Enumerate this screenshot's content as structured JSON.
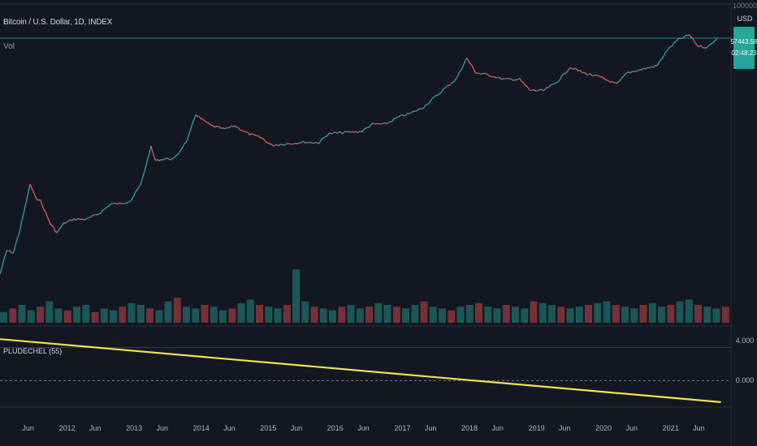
{
  "header": {
    "symbol_title": "Bitcoin / U.S. Dollar, 1D, INDEX",
    "volume_label": "Vol"
  },
  "price_axis": {
    "top_label": "100000.00",
    "currency": "USD",
    "last_price": "57443.58",
    "countdown": "02:48:23"
  },
  "indicator": {
    "label": "PLUDECHEL (55)",
    "axis_labels": [
      "4.000",
      "0.000"
    ]
  },
  "colors": {
    "background": "#131722",
    "up": "#26a69a",
    "down": "#ef5350",
    "indicator_line": "#f2e24d"
  },
  "chart_data": [
    {
      "type": "line",
      "title": "Bitcoin / U.S. Dollar, 1D, INDEX",
      "scale": "log",
      "x_tick_labels": [
        "Jun",
        "2012",
        "Jun",
        "2013",
        "Jun",
        "2014",
        "Jun",
        "2015",
        "Jun",
        "2016",
        "Jun",
        "2017",
        "Jun",
        "2018",
        "Jun",
        "2019",
        "Jun",
        "2020",
        "Jun",
        "2021",
        "Jun"
      ],
      "y_top_label": "100000.00",
      "last_value": 57443.58,
      "points": [
        [
          2011.0,
          0.3
        ],
        [
          2011.1,
          1.0
        ],
        [
          2011.2,
          0.9
        ],
        [
          2011.3,
          3.0
        ],
        [
          2011.45,
          30
        ],
        [
          2011.52,
          16
        ],
        [
          2011.6,
          13
        ],
        [
          2011.75,
          4
        ],
        [
          2011.85,
          2.5
        ],
        [
          2011.95,
          4
        ],
        [
          2012.1,
          5
        ],
        [
          2012.3,
          5
        ],
        [
          2012.5,
          7
        ],
        [
          2012.65,
          11
        ],
        [
          2012.8,
          11
        ],
        [
          2012.95,
          13
        ],
        [
          2013.1,
          30
        ],
        [
          2013.25,
          200
        ],
        [
          2013.32,
          100
        ],
        [
          2013.45,
          110
        ],
        [
          2013.6,
          110
        ],
        [
          2013.8,
          300
        ],
        [
          2013.92,
          1100
        ],
        [
          2014.0,
          850
        ],
        [
          2014.15,
          600
        ],
        [
          2014.35,
          500
        ],
        [
          2014.5,
          600
        ],
        [
          2014.7,
          400
        ],
        [
          2014.9,
          320
        ],
        [
          2015.05,
          220
        ],
        [
          2015.3,
          240
        ],
        [
          2015.55,
          260
        ],
        [
          2015.75,
          250
        ],
        [
          2015.9,
          400
        ],
        [
          2016.1,
          420
        ],
        [
          2016.4,
          450
        ],
        [
          2016.55,
          650
        ],
        [
          2016.75,
          650
        ],
        [
          2016.95,
          950
        ],
        [
          2017.1,
          1100
        ],
        [
          2017.3,
          1500
        ],
        [
          2017.5,
          2700
        ],
        [
          2017.65,
          4300
        ],
        [
          2017.8,
          6500
        ],
        [
          2017.96,
          19000
        ],
        [
          2018.1,
          9000
        ],
        [
          2018.3,
          8000
        ],
        [
          2018.5,
          6500
        ],
        [
          2018.75,
          6400
        ],
        [
          2018.9,
          3700
        ],
        [
          2019.1,
          3600
        ],
        [
          2019.3,
          5500
        ],
        [
          2019.5,
          12000
        ],
        [
          2019.7,
          9000
        ],
        [
          2019.95,
          7200
        ],
        [
          2020.2,
          5000
        ],
        [
          2020.35,
          9000
        ],
        [
          2020.6,
          11000
        ],
        [
          2020.8,
          13000
        ],
        [
          2020.95,
          29000
        ],
        [
          2021.1,
          48000
        ],
        [
          2021.28,
          63000
        ],
        [
          2021.4,
          36000
        ],
        [
          2021.55,
          33000
        ],
        [
          2021.65,
          47000
        ],
        [
          2021.72,
          57443.58
        ]
      ]
    },
    {
      "type": "bar",
      "title": "Vol",
      "series": [
        {
          "values": [
            6,
            8,
            10,
            7,
            9,
            12,
            8,
            7,
            9,
            10,
            6,
            8,
            7,
            9,
            11,
            10,
            8,
            7,
            12,
            14,
            9,
            8,
            10,
            9,
            7,
            8,
            11,
            13,
            10,
            9,
            8,
            10,
            30,
            12,
            9,
            8,
            7,
            9,
            10,
            8,
            9,
            11,
            10,
            9,
            8,
            10,
            12,
            9,
            8,
            7,
            9,
            10,
            11,
            9,
            8,
            10,
            9,
            8,
            12,
            11,
            10,
            9,
            8,
            9,
            10,
            11,
            12,
            10,
            9,
            8,
            10,
            11,
            9,
            10,
            12,
            13,
            10,
            9,
            8,
            9
          ]
        }
      ]
    },
    {
      "type": "line",
      "title": "PLUDECHEL (55)",
      "points": [
        [
          2011.0,
          5.0
        ],
        [
          2021.75,
          -2.6
        ]
      ],
      "ylim": [
        -3,
        6
      ]
    }
  ]
}
